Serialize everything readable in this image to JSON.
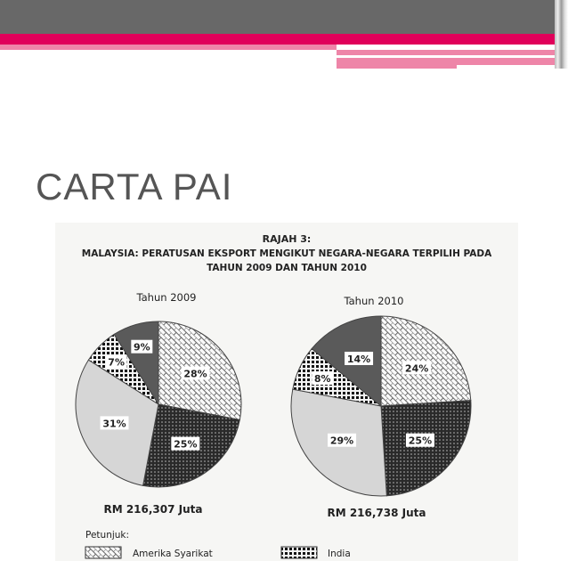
{
  "slide": {
    "title": "CARTA PAI"
  },
  "colors": {
    "header_gray": "#686868",
    "accent_red": "#e0005a",
    "accent_pink": "#ee85a8"
  },
  "chart_data": [
    {
      "type": "pie",
      "figure_label": "RAJAH 3:",
      "title": "MALAYSIA: PERATUSAN EKSPORT MENGIKUT NEGARA-NEGARA TERPILIH PADA",
      "title_line2": "TAHUN 2009 DAN TAHUN 2010",
      "subtitle": "Tahun 2009",
      "total": "RM 216,307 Juta",
      "slices": [
        {
          "category": "Amerika Syarikat",
          "value": 28,
          "label": "28%",
          "pattern": "crosshatch"
        },
        {
          "category": "",
          "value": 25,
          "label": "25%",
          "pattern": "dark-dots"
        },
        {
          "category": "",
          "value": 31,
          "label": "31%",
          "pattern": "light-gray"
        },
        {
          "category": "India",
          "value": 7,
          "label": "7%",
          "pattern": "checker"
        },
        {
          "category": "",
          "value": 9,
          "label": "9%",
          "pattern": "dark-gray"
        }
      ]
    },
    {
      "type": "pie",
      "subtitle": "Tahun 2010",
      "total": "RM 216,738 Juta",
      "slices": [
        {
          "category": "Amerika Syarikat",
          "value": 24,
          "label": "24%",
          "pattern": "crosshatch"
        },
        {
          "category": "",
          "value": 25,
          "label": "25%",
          "pattern": "dark-dots"
        },
        {
          "category": "",
          "value": 29,
          "label": "29%",
          "pattern": "light-gray"
        },
        {
          "category": "India",
          "value": 8,
          "label": "8%",
          "pattern": "checker"
        },
        {
          "category": "",
          "value": 14,
          "label": "14%",
          "pattern": "dark-gray"
        }
      ]
    }
  ],
  "legend": {
    "heading": "Petunjuk:",
    "items": [
      {
        "label": "Amerika Syarikat",
        "pattern": "crosshatch"
      },
      {
        "label": "India",
        "pattern": "checker"
      }
    ]
  }
}
